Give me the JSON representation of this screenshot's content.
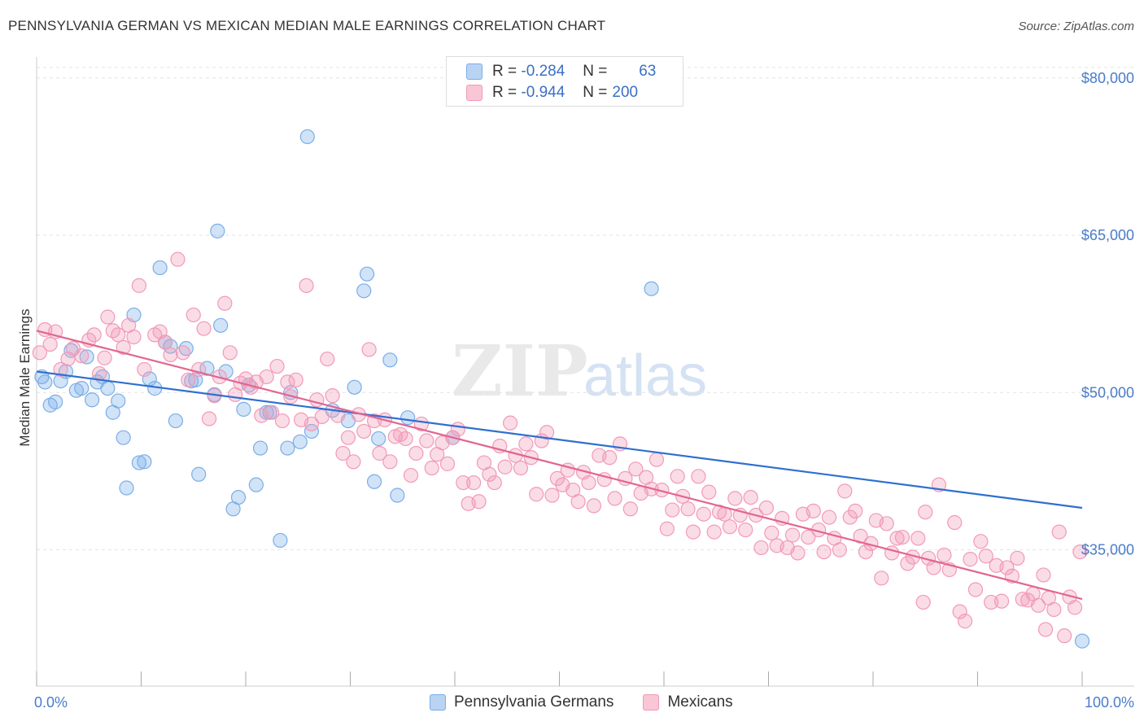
{
  "title": "PENNSYLVANIA GERMAN VS MEXICAN MEDIAN MALE EARNINGS CORRELATION CHART",
  "source": "Source: ZipAtlas.com",
  "legend": {
    "rows": [
      {
        "r_label": "R =",
        "r_value": "-0.284",
        "n_label": "N =",
        "n_value": "63",
        "color": "#a8c8f0"
      },
      {
        "r_label": "R =",
        "r_value": "-0.944",
        "n_label": "N =",
        "n_value": "200",
        "color": "#f5b5c8"
      }
    ]
  },
  "bottom_legend": [
    "Pennsylvania Germans",
    "Mexicans"
  ],
  "chart_data": {
    "type": "scatter",
    "xlabel": "",
    "ylabel": "Median Male Earnings",
    "xlim": [
      0,
      100
    ],
    "ylim": [
      22000,
      82000
    ],
    "x_tick_labels": [
      "0.0%",
      "100.0%"
    ],
    "y_ticks": [
      35000,
      50000,
      65000,
      80000
    ],
    "y_tick_labels": [
      "$35,000",
      "$50,000",
      "$65,000",
      "$80,000"
    ],
    "grid": true,
    "series": [
      {
        "name": "Pennsylvania Germans",
        "color": "#7aaee8",
        "line_color": "#2f6fd1",
        "trend": [
          [
            0,
            52000
          ],
          [
            100,
            39000
          ]
        ],
        "points": [
          [
            0.5,
            51500
          ],
          [
            0.8,
            51000
          ],
          [
            1.3,
            48800
          ],
          [
            1.8,
            49100
          ],
          [
            2.3,
            51100
          ],
          [
            2.8,
            52000
          ],
          [
            3.3,
            54000
          ],
          [
            3.8,
            50200
          ],
          [
            4.3,
            50400
          ],
          [
            4.8,
            53400
          ],
          [
            5.3,
            49300
          ],
          [
            5.8,
            51000
          ],
          [
            6.3,
            51500
          ],
          [
            6.8,
            50400
          ],
          [
            7.3,
            48100
          ],
          [
            7.8,
            49200
          ],
          [
            8.3,
            45700
          ],
          [
            8.6,
            40900
          ],
          [
            9.3,
            57400
          ],
          [
            9.8,
            43300
          ],
          [
            10.3,
            43400
          ],
          [
            10.8,
            51300
          ],
          [
            11.3,
            50400
          ],
          [
            11.8,
            61900
          ],
          [
            12.3,
            54800
          ],
          [
            12.8,
            54400
          ],
          [
            13.3,
            47300
          ],
          [
            14.3,
            54200
          ],
          [
            14.8,
            51100
          ],
          [
            15.5,
            42200
          ],
          [
            16.3,
            52300
          ],
          [
            17.0,
            49800
          ],
          [
            17.3,
            65400
          ],
          [
            17.6,
            56400
          ],
          [
            18.1,
            52000
          ],
          [
            18.8,
            38900
          ],
          [
            19.3,
            40000
          ],
          [
            19.8,
            48400
          ],
          [
            20.3,
            50700
          ],
          [
            21.0,
            41200
          ],
          [
            21.4,
            44700
          ],
          [
            22.0,
            48100
          ],
          [
            22.3,
            48100
          ],
          [
            23.3,
            35900
          ],
          [
            24.0,
            44700
          ],
          [
            24.3,
            50000
          ],
          [
            25.2,
            45300
          ],
          [
            25.9,
            74400
          ],
          [
            26.3,
            46300
          ],
          [
            28.3,
            48300
          ],
          [
            29.8,
            47300
          ],
          [
            30.4,
            50500
          ],
          [
            31.3,
            59700
          ],
          [
            31.6,
            61300
          ],
          [
            32.3,
            41500
          ],
          [
            32.7,
            45600
          ],
          [
            33.8,
            53100
          ],
          [
            34.5,
            40200
          ],
          [
            35.5,
            47600
          ],
          [
            39.8,
            45700
          ],
          [
            58.8,
            59900
          ],
          [
            100,
            26300
          ],
          [
            15.2,
            51200
          ]
        ]
      },
      {
        "name": "Mexicans",
        "color": "#f29ab6",
        "line_color": "#e2668f",
        "trend": [
          [
            0,
            55900
          ],
          [
            100,
            30300
          ]
        ],
        "points": [
          [
            0.3,
            53800
          ],
          [
            0.8,
            56000
          ],
          [
            1.3,
            54600
          ],
          [
            1.8,
            55800
          ],
          [
            2.3,
            52200
          ],
          [
            3.0,
            53200
          ],
          [
            3.5,
            54200
          ],
          [
            4.3,
            53500
          ],
          [
            5.0,
            55000
          ],
          [
            5.5,
            55500
          ],
          [
            6.0,
            51800
          ],
          [
            6.5,
            53300
          ],
          [
            6.8,
            57200
          ],
          [
            7.3,
            55900
          ],
          [
            7.8,
            55500
          ],
          [
            8.3,
            54300
          ],
          [
            8.8,
            56400
          ],
          [
            9.3,
            55300
          ],
          [
            9.8,
            60200
          ],
          [
            10.3,
            52200
          ],
          [
            11.3,
            55500
          ],
          [
            11.8,
            55800
          ],
          [
            12.3,
            54800
          ],
          [
            12.8,
            53600
          ],
          [
            13.5,
            62700
          ],
          [
            14.0,
            53800
          ],
          [
            14.5,
            51200
          ],
          [
            15.0,
            57400
          ],
          [
            15.5,
            52200
          ],
          [
            16.0,
            56100
          ],
          [
            16.5,
            47500
          ],
          [
            17.0,
            49700
          ],
          [
            17.5,
            51500
          ],
          [
            18.0,
            58500
          ],
          [
            18.5,
            53800
          ],
          [
            19.0,
            49800
          ],
          [
            19.5,
            50900
          ],
          [
            20.0,
            51300
          ],
          [
            20.5,
            50500
          ],
          [
            21.0,
            51000
          ],
          [
            21.5,
            47800
          ],
          [
            22.0,
            51500
          ],
          [
            22.5,
            48100
          ],
          [
            23.0,
            52500
          ],
          [
            23.5,
            47300
          ],
          [
            24.0,
            51000
          ],
          [
            24.3,
            49600
          ],
          [
            24.8,
            51200
          ],
          [
            25.3,
            47400
          ],
          [
            25.8,
            60200
          ],
          [
            26.3,
            47000
          ],
          [
            26.8,
            49300
          ],
          [
            27.3,
            47700
          ],
          [
            27.8,
            53200
          ],
          [
            28.3,
            49700
          ],
          [
            28.8,
            47800
          ],
          [
            29.3,
            44200
          ],
          [
            29.8,
            45700
          ],
          [
            30.3,
            43400
          ],
          [
            30.8,
            47900
          ],
          [
            31.3,
            46300
          ],
          [
            31.8,
            54100
          ],
          [
            32.3,
            47300
          ],
          [
            32.8,
            44200
          ],
          [
            33.3,
            47400
          ],
          [
            33.8,
            43400
          ],
          [
            34.3,
            45800
          ],
          [
            34.8,
            46000
          ],
          [
            35.3,
            45600
          ],
          [
            35.8,
            42100
          ],
          [
            36.3,
            44200
          ],
          [
            36.8,
            47000
          ],
          [
            37.3,
            45400
          ],
          [
            37.8,
            42800
          ],
          [
            38.3,
            44100
          ],
          [
            38.8,
            45200
          ],
          [
            39.3,
            43200
          ],
          [
            39.8,
            45700
          ],
          [
            40.3,
            46500
          ],
          [
            40.8,
            41400
          ],
          [
            41.3,
            39400
          ],
          [
            41.8,
            41400
          ],
          [
            42.3,
            39600
          ],
          [
            42.8,
            43300
          ],
          [
            43.3,
            42200
          ],
          [
            43.8,
            41400
          ],
          [
            44.3,
            44900
          ],
          [
            44.8,
            42900
          ],
          [
            45.3,
            47100
          ],
          [
            45.8,
            44000
          ],
          [
            46.3,
            42800
          ],
          [
            46.8,
            45100
          ],
          [
            47.3,
            43800
          ],
          [
            47.8,
            40300
          ],
          [
            48.3,
            45400
          ],
          [
            48.8,
            46200
          ],
          [
            49.3,
            40200
          ],
          [
            49.8,
            41800
          ],
          [
            50.3,
            41200
          ],
          [
            50.8,
            42600
          ],
          [
            51.3,
            40700
          ],
          [
            51.8,
            39600
          ],
          [
            52.3,
            42400
          ],
          [
            52.8,
            41400
          ],
          [
            53.3,
            39200
          ],
          [
            53.8,
            44000
          ],
          [
            54.3,
            41700
          ],
          [
            54.8,
            43800
          ],
          [
            55.3,
            39900
          ],
          [
            55.8,
            45100
          ],
          [
            56.3,
            41800
          ],
          [
            56.8,
            38900
          ],
          [
            57.3,
            42700
          ],
          [
            57.8,
            40400
          ],
          [
            58.3,
            41900
          ],
          [
            58.8,
            40800
          ],
          [
            59.3,
            43600
          ],
          [
            59.8,
            40700
          ],
          [
            60.3,
            37000
          ],
          [
            60.8,
            38800
          ],
          [
            61.3,
            42000
          ],
          [
            61.8,
            40100
          ],
          [
            62.3,
            38900
          ],
          [
            62.8,
            36700
          ],
          [
            63.3,
            42000
          ],
          [
            63.8,
            38400
          ],
          [
            64.3,
            40500
          ],
          [
            64.8,
            36700
          ],
          [
            65.3,
            38600
          ],
          [
            65.8,
            38400
          ],
          [
            66.3,
            37200
          ],
          [
            66.8,
            39900
          ],
          [
            67.3,
            38300
          ],
          [
            67.8,
            36900
          ],
          [
            68.3,
            40000
          ],
          [
            68.8,
            38300
          ],
          [
            69.3,
            35200
          ],
          [
            69.8,
            39000
          ],
          [
            70.3,
            36600
          ],
          [
            70.8,
            35400
          ],
          [
            71.3,
            38000
          ],
          [
            71.8,
            35200
          ],
          [
            72.3,
            36400
          ],
          [
            72.8,
            34700
          ],
          [
            73.3,
            38400
          ],
          [
            73.8,
            36200
          ],
          [
            74.3,
            38700
          ],
          [
            74.8,
            36900
          ],
          [
            75.3,
            34800
          ],
          [
            75.8,
            38100
          ],
          [
            76.3,
            36100
          ],
          [
            76.8,
            35000
          ],
          [
            77.3,
            40600
          ],
          [
            77.8,
            38100
          ],
          [
            78.3,
            38700
          ],
          [
            78.8,
            36300
          ],
          [
            79.3,
            34800
          ],
          [
            79.8,
            35600
          ],
          [
            80.3,
            37800
          ],
          [
            80.8,
            32300
          ],
          [
            81.3,
            37500
          ],
          [
            81.8,
            34700
          ],
          [
            82.3,
            36100
          ],
          [
            82.8,
            36200
          ],
          [
            83.3,
            33700
          ],
          [
            83.8,
            34300
          ],
          [
            84.3,
            36100
          ],
          [
            84.8,
            30000
          ],
          [
            85.3,
            34200
          ],
          [
            85.8,
            33300
          ],
          [
            86.3,
            41200
          ],
          [
            86.8,
            34500
          ],
          [
            87.3,
            33100
          ],
          [
            87.8,
            37600
          ],
          [
            88.3,
            29100
          ],
          [
            88.8,
            28200
          ],
          [
            89.3,
            34100
          ],
          [
            89.8,
            31200
          ],
          [
            90.3,
            35800
          ],
          [
            90.8,
            34400
          ],
          [
            91.3,
            30000
          ],
          [
            91.8,
            33500
          ],
          [
            92.3,
            30100
          ],
          [
            92.8,
            33300
          ],
          [
            93.3,
            32500
          ],
          [
            93.8,
            34200
          ],
          [
            94.3,
            30300
          ],
          [
            94.8,
            30200
          ],
          [
            95.3,
            30800
          ],
          [
            95.8,
            29700
          ],
          [
            96.3,
            32600
          ],
          [
            96.8,
            30400
          ],
          [
            97.3,
            29300
          ],
          [
            97.8,
            36700
          ],
          [
            98.3,
            26800
          ],
          [
            98.8,
            30500
          ],
          [
            99.3,
            29500
          ],
          [
            99.8,
            34800
          ],
          [
            96.5,
            27400
          ],
          [
            85.0,
            38600
          ]
        ]
      }
    ]
  }
}
